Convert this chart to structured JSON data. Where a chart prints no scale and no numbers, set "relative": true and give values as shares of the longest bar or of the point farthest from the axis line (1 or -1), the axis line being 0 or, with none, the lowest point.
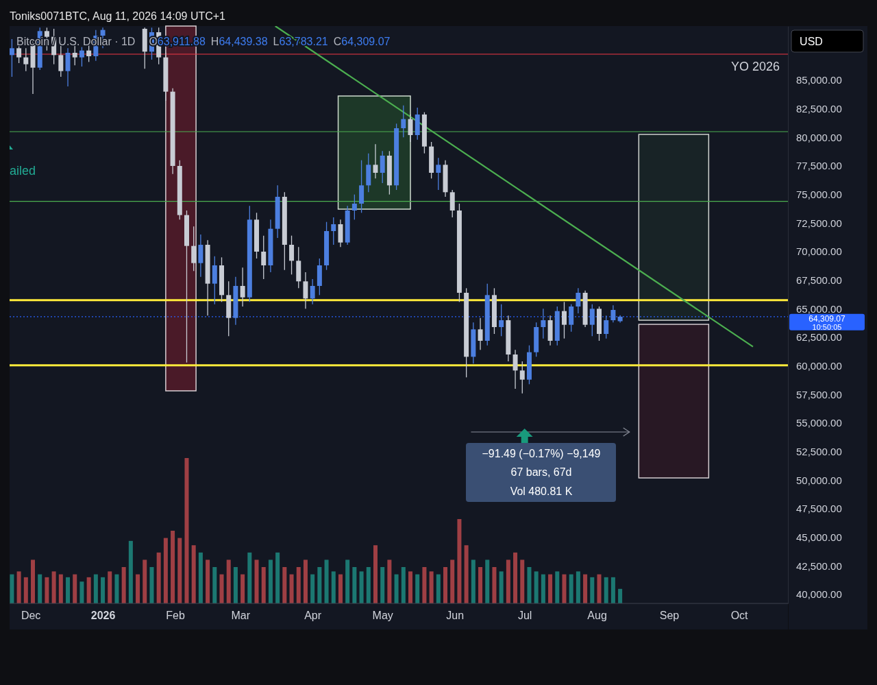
{
  "chart_data": [
    {
      "type": "candlestick",
      "title": "Bitcoin / U.S. Dollar · 1D",
      "subtitle": "O63,911.88 H64,439.38 L63,783.21 C64,309.07",
      "annotations": [
        "Toniks0071BTC, Aug 11, 2026 14:09 UTC+1",
        "USD",
        "10:50:05",
        "ailed",
        "−91.49 (−0.17%) −9,149",
        "67 bars, 67d",
        "Vol 480.81 K"
      ],
      "x": [
        "2025-11-23",
        "2025-11-26",
        "2025-11-29",
        "2025-12-02",
        "2025-12-05",
        "2025-12-08",
        "2025-12-11",
        "2025-12-14",
        "2025-12-17",
        "2025-12-20",
        "2025-12-23",
        "2025-12-26",
        "2025-12-29",
        "2026-01-01",
        "2026-01-19",
        "2026-01-22",
        "2026-01-25",
        "2026-01-28",
        "2026-01-31",
        "2026-02-03",
        "2026-02-06",
        "2026-02-09",
        "2026-02-12",
        "2026-02-15",
        "2026-02-18",
        "2026-02-21",
        "2026-02-24",
        "2026-02-27",
        "2026-03-02",
        "2026-03-05",
        "2026-03-08",
        "2026-03-11",
        "2026-03-14",
        "2026-03-17",
        "2026-03-20",
        "2026-03-23",
        "2026-03-26",
        "2026-03-29",
        "2026-04-01",
        "2026-04-04",
        "2026-04-07",
        "2026-04-10",
        "2026-04-13",
        "2026-04-16",
        "2026-04-19",
        "2026-04-22",
        "2026-04-25",
        "2026-04-28",
        "2026-05-01",
        "2026-05-04",
        "2026-05-07",
        "2026-05-10",
        "2026-05-13",
        "2026-05-16",
        "2026-05-19",
        "2026-05-22",
        "2026-05-25",
        "2026-05-28",
        "2026-05-31",
        "2026-06-03",
        "2026-06-06",
        "2026-06-09",
        "2026-06-12",
        "2026-06-15",
        "2026-06-18",
        "2026-06-21",
        "2026-06-24",
        "2026-06-27",
        "2026-06-30",
        "2026-07-03",
        "2026-07-06",
        "2026-07-09",
        "2026-07-12",
        "2026-07-15",
        "2026-07-18",
        "2026-07-21",
        "2026-07-24",
        "2026-07-27",
        "2026-07-30",
        "2026-08-02",
        "2026-08-05",
        "2026-08-08",
        "2026-08-11"
      ],
      "ohlc": [
        [
          87200,
          88600,
          85300,
          87800
        ],
        [
          87800,
          88800,
          86500,
          87000
        ],
        [
          87000,
          87800,
          85800,
          86400
        ],
        [
          88200,
          88600,
          83800,
          86100
        ],
        [
          86100,
          89600,
          85900,
          89300
        ],
        [
          89300,
          89600,
          87600,
          88800
        ],
        [
          88800,
          89500,
          86400,
          87200
        ],
        [
          87200,
          88400,
          85300,
          85800
        ],
        [
          85800,
          87800,
          84460,
          87400
        ],
        [
          87400,
          88500,
          86300,
          87000
        ],
        [
          87000,
          87900,
          86200,
          87600
        ],
        [
          87600,
          88100,
          86600,
          87100
        ],
        [
          87100,
          89400,
          86700,
          88900
        ],
        [
          88900,
          89600,
          87800,
          89400
        ],
        [
          89500,
          89600,
          86000,
          87500
        ],
        [
          87500,
          89600,
          86800,
          89200
        ],
        [
          89200,
          89600,
          86400,
          87000
        ],
        [
          87000,
          87400,
          83200,
          84000
        ],
        [
          84000,
          84300,
          76800,
          77500
        ],
        [
          77500,
          78000,
          72800,
          73200
        ],
        [
          73200,
          73600,
          60300,
          70500
        ],
        [
          70500,
          72200,
          68300,
          69000
        ],
        [
          69000,
          71500,
          67800,
          70600
        ],
        [
          70600,
          71000,
          64400,
          67200
        ],
        [
          67200,
          69600,
          65400,
          68800
        ],
        [
          68800,
          69500,
          65600,
          66200
        ],
        [
          66200,
          67400,
          62600,
          64200
        ],
        [
          64200,
          67800,
          63600,
          67000
        ],
        [
          67000,
          68600,
          65200,
          66000
        ],
        [
          66000,
          74000,
          65600,
          72800
        ],
        [
          72800,
          73400,
          69400,
          70000
        ],
        [
          70000,
          71400,
          67600,
          68800
        ],
        [
          68800,
          72800,
          68200,
          72000
        ],
        [
          72000,
          75800,
          71200,
          74800
        ],
        [
          74800,
          75200,
          68400,
          70600
        ],
        [
          70600,
          71400,
          68000,
          69200
        ],
        [
          69200,
          70400,
          66800,
          67400
        ],
        [
          67400,
          68200,
          65000,
          65900
        ],
        [
          65900,
          67600,
          65400,
          67000
        ],
        [
          67000,
          69400,
          66200,
          68800
        ],
        [
          68800,
          72600,
          68400,
          71800
        ],
        [
          71800,
          73000,
          70600,
          72400
        ],
        [
          72400,
          72800,
          70400,
          70800
        ],
        [
          70800,
          74000,
          70600,
          73600
        ],
        [
          73600,
          75000,
          72800,
          74200
        ],
        [
          74200,
          78000,
          73400,
          75800
        ],
        [
          75800,
          78600,
          75200,
          77600
        ],
        [
          77600,
          79400,
          76400,
          76900
        ],
        [
          76900,
          78800,
          76000,
          78400
        ],
        [
          78400,
          78800,
          75000,
          75800
        ],
        [
          75800,
          81200,
          75400,
          80800
        ],
        [
          80800,
          82800,
          80000,
          81600
        ],
        [
          81600,
          82000,
          79600,
          80200
        ],
        [
          80200,
          82600,
          79800,
          82000
        ],
        [
          82000,
          82200,
          78600,
          79200
        ],
        [
          79200,
          79600,
          76400,
          76900
        ],
        [
          76900,
          78200,
          75400,
          77600
        ],
        [
          77600,
          78000,
          74800,
          75200
        ],
        [
          75200,
          75400,
          73000,
          73600
        ],
        [
          73600,
          74200,
          65600,
          66400
        ],
        [
          66400,
          66800,
          59000,
          60800
        ],
        [
          60800,
          63800,
          60200,
          63200
        ],
        [
          63200,
          64200,
          61400,
          62200
        ],
        [
          62200,
          67200,
          61800,
          66200
        ],
        [
          66200,
          66800,
          62800,
          63400
        ],
        [
          63400,
          65400,
          62600,
          64000
        ],
        [
          64000,
          64400,
          60400,
          61000
        ],
        [
          61000,
          61400,
          58000,
          59600
        ],
        [
          59600,
          60400,
          57600,
          58800
        ],
        [
          58800,
          61800,
          58400,
          61200
        ],
        [
          61200,
          63800,
          60800,
          63400
        ],
        [
          63400,
          65000,
          62400,
          64000
        ],
        [
          64000,
          64400,
          61800,
          62200
        ],
        [
          62200,
          65200,
          61800,
          64800
        ],
        [
          64800,
          65600,
          62400,
          63600
        ],
        [
          63600,
          65400,
          63000,
          65200
        ],
        [
          65200,
          66800,
          64600,
          66400
        ],
        [
          66400,
          66600,
          63400,
          63600
        ],
        [
          63600,
          65400,
          62600,
          65000
        ],
        [
          65000,
          65200,
          62200,
          62800
        ],
        [
          62800,
          64400,
          62400,
          64000
        ],
        [
          64000,
          65300,
          63800,
          64900
        ],
        [
          63911.88,
          64439.38,
          63783.21,
          64309.07
        ]
      ],
      "colors": [
        "#4c7fe0",
        "#c8ccd4",
        "#c8ccd4",
        "#c8ccd4",
        "#4c7fe0",
        "#c8ccd4",
        "#c8ccd4",
        "#c8ccd4",
        "#4c7fe0",
        "#c8ccd4",
        "#4c7fe0",
        "#c8ccd4",
        "#4c7fe0",
        "#4c7fe0",
        "#c8ccd4",
        "#4c7fe0",
        "#c8ccd4",
        "#c8ccd4",
        "#c8ccd4",
        "#c8ccd4",
        "#c8ccd4",
        "#c8ccd4",
        "#4c7fe0",
        "#c8ccd4",
        "#4c7fe0",
        "#c8ccd4",
        "#c8ccd4",
        "#4c7fe0",
        "#c8ccd4",
        "#4c7fe0",
        "#c8ccd4",
        "#c8ccd4",
        "#4c7fe0",
        "#4c7fe0",
        "#c8ccd4",
        "#c8ccd4",
        "#c8ccd4",
        "#c8ccd4",
        "#4c7fe0",
        "#4c7fe0",
        "#4c7fe0",
        "#4c7fe0",
        "#c8ccd4",
        "#4c7fe0",
        "#4c7fe0",
        "#4c7fe0",
        "#4c7fe0",
        "#c8ccd4",
        "#4c7fe0",
        "#c8ccd4",
        "#4c7fe0",
        "#4c7fe0",
        "#c8ccd4",
        "#4c7fe0",
        "#c8ccd4",
        "#c8ccd4",
        "#4c7fe0",
        "#c8ccd4",
        "#c8ccd4",
        "#c8ccd4",
        "#c8ccd4",
        "#4c7fe0",
        "#c8ccd4",
        "#4c7fe0",
        "#c8ccd4",
        "#4c7fe0",
        "#c8ccd4",
        "#c8ccd4",
        "#c8ccd4",
        "#4c7fe0",
        "#4c7fe0",
        "#4c7fe0",
        "#c8ccd4",
        "#4c7fe0",
        "#c8ccd4",
        "#4c7fe0",
        "#4c7fe0",
        "#c8ccd4",
        "#4c7fe0",
        "#c8ccd4",
        "#4c7fe0",
        "#4c7fe0",
        "#4c7fe0"
      ],
      "series": [
        {
          "type": "line",
          "color": "#4caf50",
          "x": [
            "2026-03-16",
            "2026-10-07"
          ],
          "values": [
            89740,
            61680
          ]
        }
      ],
      "ref_lines": [
        {
          "axis": "y",
          "value": 87280,
          "label": "YO 2026",
          "color": "#f23645"
        },
        {
          "axis": "y",
          "value": 80500,
          "color": "#4caf50"
        },
        {
          "axis": "y",
          "value": 74400,
          "color": "#4caf50"
        },
        {
          "axis": "y",
          "value": 65760,
          "color": "#ffeb3b"
        },
        {
          "axis": "y",
          "value": 60060,
          "color": "#ffeb3b"
        },
        {
          "axis": "y",
          "value": 64309.07,
          "label": "64,309.07",
          "color": "#2962ff",
          "line_style": "dotted"
        }
      ],
      "xlim": [
        "2025-11-22",
        "2026-10-22"
      ],
      "xticks": [
        {
          "value": "2025-12-01",
          "label": "Dec"
        },
        {
          "value": "2026-01-01",
          "label": "2026"
        },
        {
          "value": "2026-02-01",
          "label": "Feb"
        },
        {
          "value": "2026-03-01",
          "label": "Mar"
        },
        {
          "value": "2026-04-01",
          "label": "Apr"
        },
        {
          "value": "2026-05-01",
          "label": "May"
        },
        {
          "value": "2026-06-01",
          "label": "Jun"
        },
        {
          "value": "2026-07-01",
          "label": "Jul"
        },
        {
          "value": "2026-08-01",
          "label": "Aug"
        },
        {
          "value": "2026-09-01",
          "label": "Sep"
        },
        {
          "value": "2026-10-01",
          "label": "Oct"
        }
      ],
      "ylim": [
        39220,
        89740
      ],
      "yticks": [
        {
          "value": 40000,
          "label": "40,000.00"
        },
        {
          "value": 42500,
          "label": "42,500.00"
        },
        {
          "value": 45000,
          "label": "45,000.00"
        },
        {
          "value": 47500,
          "label": "47,500.00"
        },
        {
          "value": 50000,
          "label": "50,000.00"
        },
        {
          "value": 52500,
          "label": "52,500.00"
        },
        {
          "value": 55000,
          "label": "55,000.00"
        },
        {
          "value": 57500,
          "label": "57,500.00"
        },
        {
          "value": 60000,
          "label": "60,000.00"
        },
        {
          "value": 62500,
          "label": "62,500.00"
        },
        {
          "value": 65000,
          "label": "65,000.00"
        },
        {
          "value": 67500,
          "label": "67,500.00"
        },
        {
          "value": 70000,
          "label": "70,000.00"
        },
        {
          "value": 72500,
          "label": "72,500.00"
        },
        {
          "value": 75000,
          "label": "75,000.00"
        },
        {
          "value": 77500,
          "label": "77,500.00"
        },
        {
          "value": 80000,
          "label": "80,000.00"
        },
        {
          "value": 82500,
          "label": "82,500.00"
        },
        {
          "value": 85000,
          "label": "85,000.00"
        }
      ]
    },
    {
      "type": "bar",
      "relative": true,
      "tick_labels": false,
      "xlim": [
        "2025-11-22",
        "2026-10-22"
      ],
      "x": [
        "2025-11-23",
        "2025-11-26",
        "2025-11-29",
        "2025-12-02",
        "2025-12-05",
        "2025-12-08",
        "2025-12-11",
        "2025-12-14",
        "2025-12-17",
        "2025-12-20",
        "2025-12-23",
        "2025-12-26",
        "2025-12-29",
        "2026-01-01",
        "2026-01-04",
        "2026-01-07",
        "2026-01-10",
        "2026-01-13",
        "2026-01-16",
        "2026-01-19",
        "2026-01-22",
        "2026-01-25",
        "2026-01-28",
        "2026-01-31",
        "2026-02-03",
        "2026-02-06",
        "2026-02-09",
        "2026-02-12",
        "2026-02-15",
        "2026-02-18",
        "2026-02-21",
        "2026-02-24",
        "2026-02-27",
        "2026-03-02",
        "2026-03-05",
        "2026-03-08",
        "2026-03-11",
        "2026-03-14",
        "2026-03-17",
        "2026-03-20",
        "2026-03-23",
        "2026-03-26",
        "2026-03-29",
        "2026-04-01",
        "2026-04-04",
        "2026-04-07",
        "2026-04-10",
        "2026-04-13",
        "2026-04-16",
        "2026-04-19",
        "2026-04-22",
        "2026-04-25",
        "2026-04-28",
        "2026-05-01",
        "2026-05-04",
        "2026-05-07",
        "2026-05-10",
        "2026-05-13",
        "2026-05-16",
        "2026-05-19",
        "2026-05-22",
        "2026-05-25",
        "2026-05-28",
        "2026-05-31",
        "2026-06-03",
        "2026-06-06",
        "2026-06-09",
        "2026-06-12",
        "2026-06-15",
        "2026-06-18",
        "2026-06-21",
        "2026-06-24",
        "2026-06-27",
        "2026-06-30",
        "2026-07-03",
        "2026-07-06",
        "2026-07-09",
        "2026-07-12",
        "2026-07-15",
        "2026-07-18",
        "2026-07-21",
        "2026-07-24",
        "2026-07-27",
        "2026-07-30",
        "2026-08-02",
        "2026-08-05",
        "2026-08-08",
        "2026-08-11"
      ],
      "values": [
        0.2,
        0.22,
        0.18,
        0.3,
        0.2,
        0.18,
        0.22,
        0.2,
        0.18,
        0.2,
        0.15,
        0.18,
        0.2,
        0.18,
        0.22,
        0.2,
        0.25,
        0.43,
        0.2,
        0.3,
        0.25,
        0.35,
        0.45,
        0.5,
        0.45,
        1,
        0.4,
        0.35,
        0.3,
        0.25,
        0.2,
        0.3,
        0.25,
        0.2,
        0.35,
        0.3,
        0.25,
        0.3,
        0.35,
        0.25,
        0.2,
        0.25,
        0.3,
        0.2,
        0.25,
        0.3,
        0.22,
        0.2,
        0.3,
        0.25,
        0.22,
        0.25,
        0.4,
        0.25,
        0.3,
        0.2,
        0.25,
        0.22,
        0.2,
        0.25,
        0.22,
        0.2,
        0.25,
        0.3,
        0.58,
        0.4,
        0.3,
        0.25,
        0.3,
        0.25,
        0.22,
        0.3,
        0.35,
        0.3,
        0.25,
        0.22,
        0.2,
        0.2,
        0.22,
        0.2,
        0.2,
        0.22,
        0.2,
        0.18,
        0.2,
        0.18,
        0.18,
        0.1
      ],
      "colors": [
        "#1f8a80",
        "#b8474a",
        "#b8474a",
        "#b8474a",
        "#1f8a80",
        "#b8474a",
        "#b8474a",
        "#b8474a",
        "#1f8a80",
        "#b8474a",
        "#1f8a80",
        "#b8474a",
        "#1f8a80",
        "#1f8a80",
        "#b8474a",
        "#1f8a80",
        "#b8474a",
        "#1f8a80",
        "#b8474a",
        "#b8474a",
        "#1f8a80",
        "#b8474a",
        "#b8474a",
        "#b8474a",
        "#b8474a",
        "#b8474a",
        "#b8474a",
        "#1f8a80",
        "#b8474a",
        "#1f8a80",
        "#b8474a",
        "#b8474a",
        "#1f8a80",
        "#b8474a",
        "#1f8a80",
        "#b8474a",
        "#b8474a",
        "#1f8a80",
        "#1f8a80",
        "#b8474a",
        "#b8474a",
        "#b8474a",
        "#b8474a",
        "#1f8a80",
        "#1f8a80",
        "#1f8a80",
        "#1f8a80",
        "#b8474a",
        "#1f8a80",
        "#1f8a80",
        "#1f8a80",
        "#1f8a80",
        "#b8474a",
        "#1f8a80",
        "#b8474a",
        "#1f8a80",
        "#1f8a80",
        "#b8474a",
        "#1f8a80",
        "#b8474a",
        "#b8474a",
        "#1f8a80",
        "#b8474a",
        "#b8474a",
        "#b8474a",
        "#b8474a",
        "#1f8a80",
        "#b8474a",
        "#1f8a80",
        "#b8474a",
        "#1f8a80",
        "#b8474a",
        "#b8474a",
        "#b8474a",
        "#1f8a80",
        "#1f8a80",
        "#1f8a80",
        "#b8474a",
        "#1f8a80",
        "#b8474a",
        "#1f8a80",
        "#1f8a80",
        "#b8474a",
        "#1f8a80",
        "#b8474a",
        "#1f8a80",
        "#1f8a80",
        "#1f8a80"
      ]
    }
  ]
}
